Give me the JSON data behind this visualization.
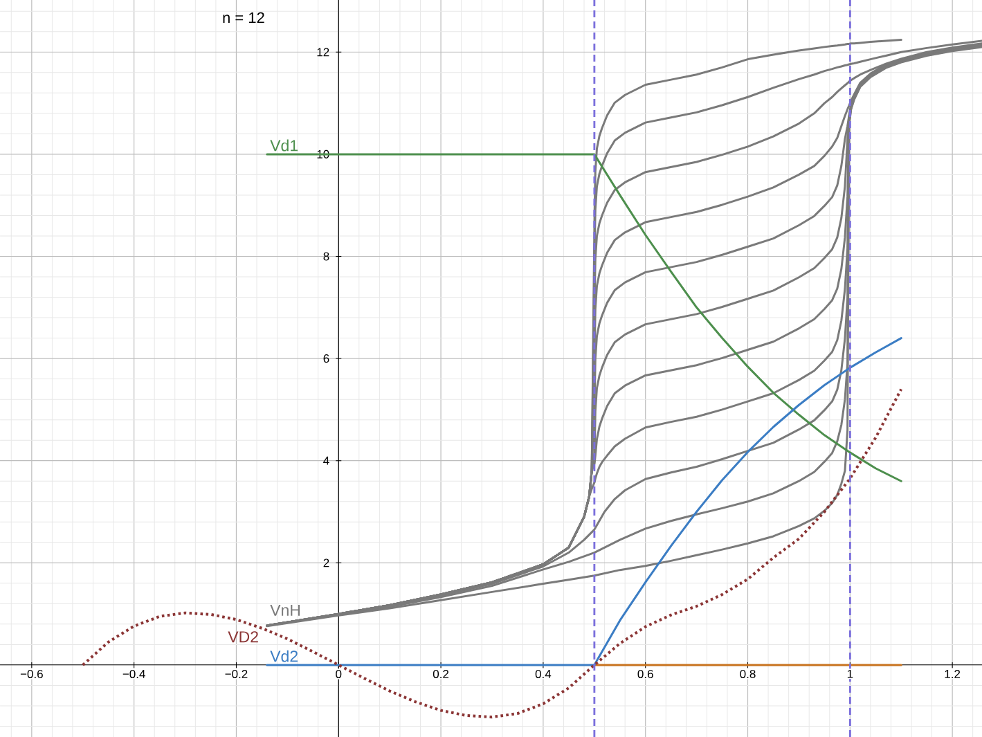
{
  "chart_data": {
    "type": "line",
    "annotations": [
      "n = 12"
    ],
    "xlim": [
      -0.662,
      1.258
    ],
    "ylim": [
      -1.41,
      13.02
    ],
    "xticks": [
      {
        "value": -0.6,
        "label": "−0.6"
      },
      {
        "value": -0.4,
        "label": "−0.4"
      },
      {
        "value": -0.2,
        "label": "−0.2"
      },
      0,
      0.2,
      0.4,
      0.6,
      0.8,
      1,
      1.2
    ],
    "yticks": [
      2,
      4,
      6,
      8,
      10,
      12
    ],
    "grid": true,
    "ref_lines": [
      {
        "axis": "x",
        "value": 0.5,
        "color": "#7b6fdc",
        "line_style": "dashed"
      },
      {
        "axis": "x",
        "value": 1.0,
        "color": "#7b6fdc",
        "line_style": "dashed"
      }
    ],
    "series": [
      {
        "name": "VnH",
        "color": "#7a7a7a",
        "x": [
          -0.14,
          0,
          0.1,
          0.2,
          0.3,
          0.4,
          0.45,
          0.48,
          0.49,
          0.495,
          0.5005,
          0.502,
          0.505,
          0.51,
          0.515,
          0.525,
          0.54,
          0.56,
          0.6,
          0.65,
          0.7,
          0.75,
          0.8,
          0.85,
          0.9,
          0.93,
          0.95,
          0.965,
          0.975,
          0.983,
          0.99,
          0.995,
          0.998,
          1.002,
          1.008,
          1.02,
          1.04,
          1.07,
          1.1
        ],
        "values": [
          0.77,
          1.0,
          1.17,
          1.38,
          1.62,
          1.97,
          2.3,
          2.9,
          3.3,
          3.8,
          8.86,
          9.66,
          10.11,
          10.36,
          10.51,
          10.76,
          11.01,
          11.16,
          11.36,
          11.46,
          11.56,
          11.7,
          11.86,
          11.95,
          12.03,
          12.07,
          12.1,
          12.12,
          12.13,
          12.14,
          12.15,
          12.16,
          12.16,
          12.17,
          12.17,
          12.18,
          12.2,
          12.22,
          12.24
        ]
      },
      {
        "color": "#7a7a7a",
        "x": [
          -0.14,
          0,
          0.1,
          0.2,
          0.3,
          0.4,
          0.45,
          0.48,
          0.49,
          0.495,
          0.5005,
          0.502,
          0.505,
          0.51,
          0.515,
          0.525,
          0.54,
          0.56,
          0.6,
          0.65,
          0.7,
          0.75,
          0.8,
          0.85,
          0.9,
          0.93,
          0.95,
          0.965,
          0.975,
          0.983,
          0.99,
          0.995,
          0.998,
          1.002,
          1.008,
          1.02,
          1.04,
          1.07,
          1.1,
          1.15,
          1.2,
          1.258
        ],
        "values": [
          0.77,
          1.0,
          1.17,
          1.38,
          1.62,
          1.97,
          2.3,
          2.9,
          3.3,
          3.8,
          8.12,
          8.92,
          9.37,
          9.62,
          9.77,
          10.02,
          10.27,
          10.42,
          10.62,
          10.72,
          10.82,
          10.96,
          11.12,
          11.3,
          11.47,
          11.56,
          11.63,
          11.67,
          11.7,
          11.72,
          11.74,
          11.75,
          11.76,
          11.77,
          11.78,
          11.81,
          11.86,
          11.93,
          12.0,
          12.08,
          12.15,
          12.22
        ]
      },
      {
        "color": "#7a7a7a",
        "x": [
          -0.14,
          0,
          0.1,
          0.2,
          0.3,
          0.4,
          0.45,
          0.48,
          0.49,
          0.495,
          0.5005,
          0.502,
          0.505,
          0.51,
          0.515,
          0.525,
          0.54,
          0.56,
          0.6,
          0.65,
          0.7,
          0.75,
          0.8,
          0.85,
          0.9,
          0.93,
          0.95,
          0.965,
          0.975,
          0.983,
          0.99,
          0.995,
          0.998,
          1.002,
          1.008,
          1.02,
          1.04,
          1.07,
          1.1,
          1.15,
          1.2,
          1.258
        ],
        "values": [
          0.77,
          1.0,
          1.17,
          1.38,
          1.62,
          1.97,
          2.3,
          2.9,
          3.3,
          3.8,
          7.15,
          7.95,
          8.4,
          8.65,
          8.8,
          9.05,
          9.3,
          9.45,
          9.65,
          9.75,
          9.85,
          9.99,
          10.15,
          10.35,
          10.6,
          10.8,
          11.0,
          11.12,
          11.22,
          11.29,
          11.35,
          11.39,
          11.42,
          11.45,
          11.49,
          11.56,
          11.65,
          11.77,
          11.87,
          12.0,
          12.09,
          12.17
        ]
      },
      {
        "color": "#7a7a7a",
        "x": [
          -0.14,
          0,
          0.1,
          0.2,
          0.3,
          0.4,
          0.45,
          0.48,
          0.49,
          0.495,
          0.5005,
          0.502,
          0.505,
          0.51,
          0.515,
          0.525,
          0.54,
          0.56,
          0.6,
          0.65,
          0.7,
          0.75,
          0.8,
          0.85,
          0.9,
          0.93,
          0.95,
          0.965,
          0.975,
          0.983,
          0.99,
          0.995,
          0.998,
          1.002,
          1.008,
          1.02,
          1.04,
          1.07,
          1.1,
          1.15,
          1.2,
          1.258
        ],
        "values": [
          0.77,
          1.0,
          1.17,
          1.38,
          1.62,
          1.97,
          2.3,
          2.9,
          3.3,
          3.8,
          6.17,
          6.97,
          7.42,
          7.67,
          7.82,
          8.07,
          8.32,
          8.47,
          8.67,
          8.77,
          8.87,
          9.01,
          9.17,
          9.35,
          9.6,
          9.77,
          9.97,
          10.15,
          10.32,
          10.55,
          10.75,
          10.88,
          10.95,
          11.05,
          11.17,
          11.4,
          11.58,
          11.76,
          11.86,
          11.99,
          12.08,
          12.16
        ]
      },
      {
        "color": "#7a7a7a",
        "x": [
          -0.14,
          0,
          0.1,
          0.2,
          0.3,
          0.4,
          0.45,
          0.48,
          0.49,
          0.495,
          0.5005,
          0.502,
          0.505,
          0.51,
          0.515,
          0.525,
          0.54,
          0.56,
          0.6,
          0.65,
          0.7,
          0.75,
          0.8,
          0.85,
          0.9,
          0.93,
          0.95,
          0.965,
          0.975,
          0.983,
          0.99,
          0.995,
          0.998,
          1.002,
          1.008,
          1.02,
          1.04,
          1.07,
          1.1,
          1.15,
          1.2,
          1.258
        ],
        "values": [
          0.77,
          1.0,
          1.17,
          1.38,
          1.62,
          1.97,
          2.3,
          2.9,
          3.3,
          3.8,
          5.19,
          5.99,
          6.44,
          6.69,
          6.84,
          7.09,
          7.34,
          7.49,
          7.69,
          7.79,
          7.89,
          8.03,
          8.19,
          8.35,
          8.61,
          8.79,
          8.99,
          9.16,
          9.39,
          9.77,
          10.3,
          10.55,
          10.75,
          10.97,
          11.14,
          11.38,
          11.57,
          11.75,
          11.85,
          11.98,
          12.07,
          12.15
        ]
      },
      {
        "color": "#7a7a7a",
        "x": [
          -0.14,
          0,
          0.1,
          0.2,
          0.3,
          0.4,
          0.45,
          0.48,
          0.49,
          0.495,
          0.5005,
          0.502,
          0.505,
          0.51,
          0.515,
          0.525,
          0.54,
          0.56,
          0.6,
          0.65,
          0.7,
          0.75,
          0.8,
          0.85,
          0.9,
          0.93,
          0.95,
          0.965,
          0.975,
          0.983,
          0.99,
          0.995,
          0.998,
          1.002,
          1.008,
          1.02,
          1.04,
          1.07,
          1.1,
          1.15,
          1.2,
          1.258
        ],
        "values": [
          0.77,
          1.0,
          1.17,
          1.38,
          1.62,
          1.97,
          2.3,
          2.9,
          3.3,
          3.8,
          4.17,
          4.97,
          5.42,
          5.67,
          5.82,
          6.07,
          6.32,
          6.47,
          6.67,
          6.77,
          6.87,
          7.01,
          7.17,
          7.33,
          7.59,
          7.77,
          7.97,
          8.14,
          8.37,
          8.75,
          9.37,
          10.3,
          10.72,
          10.96,
          11.13,
          11.37,
          11.56,
          11.74,
          11.84,
          11.97,
          12.06,
          12.14
        ]
      },
      {
        "color": "#7a7a7a",
        "x": [
          -0.14,
          0,
          0.1,
          0.2,
          0.3,
          0.4,
          0.45,
          0.48,
          0.49,
          0.495,
          0.5005,
          0.502,
          0.505,
          0.51,
          0.515,
          0.525,
          0.54,
          0.56,
          0.6,
          0.65,
          0.7,
          0.75,
          0.8,
          0.85,
          0.9,
          0.93,
          0.95,
          0.965,
          0.975,
          0.983,
          0.99,
          0.995,
          0.998,
          1.002,
          1.008,
          1.02,
          1.04,
          1.07,
          1.1,
          1.15,
          1.2,
          1.258
        ],
        "values": [
          0.77,
          1.0,
          1.17,
          1.38,
          1.62,
          1.97,
          2.3,
          2.9,
          3.3,
          3.8,
          3.95,
          4.1,
          4.42,
          4.67,
          4.82,
          5.07,
          5.32,
          5.47,
          5.67,
          5.77,
          5.87,
          6.01,
          6.17,
          6.33,
          6.59,
          6.77,
          6.97,
          7.14,
          7.37,
          7.75,
          8.37,
          9.17,
          10.69,
          10.95,
          11.12,
          11.36,
          11.55,
          11.73,
          11.84,
          11.97,
          12.06,
          12.14
        ]
      },
      {
        "color": "#7a7a7a",
        "x": [
          -0.14,
          0,
          0.1,
          0.2,
          0.3,
          0.4,
          0.45,
          0.48,
          0.49,
          0.495,
          0.5005,
          0.502,
          0.505,
          0.51,
          0.515,
          0.525,
          0.54,
          0.56,
          0.6,
          0.65,
          0.7,
          0.75,
          0.8,
          0.85,
          0.9,
          0.93,
          0.95,
          0.965,
          0.975,
          0.983,
          0.99,
          0.995,
          0.998,
          1.002,
          1.008,
          1.02,
          1.04,
          1.07,
          1.1,
          1.15,
          1.2,
          1.258
        ],
        "values": [
          0.77,
          1.0,
          1.17,
          1.38,
          1.62,
          1.97,
          2.3,
          2.9,
          3.3,
          3.45,
          3.58,
          3.65,
          3.75,
          3.88,
          3.97,
          4.1,
          4.28,
          4.43,
          4.65,
          4.76,
          4.86,
          5.0,
          5.16,
          5.32,
          5.58,
          5.76,
          5.96,
          6.13,
          6.36,
          6.74,
          7.36,
          8.16,
          10.66,
          10.94,
          11.11,
          11.35,
          11.54,
          11.72,
          11.83,
          11.96,
          12.05,
          12.13
        ]
      },
      {
        "color": "#7a7a7a",
        "x": [
          -0.14,
          0,
          0.1,
          0.2,
          0.3,
          0.4,
          0.45,
          0.48,
          0.5,
          0.52,
          0.54,
          0.56,
          0.6,
          0.65,
          0.7,
          0.75,
          0.8,
          0.85,
          0.9,
          0.93,
          0.95,
          0.965,
          0.975,
          0.983,
          0.99,
          0.995,
          0.998,
          1.002,
          1.008,
          1.02,
          1.04,
          1.07,
          1.1,
          1.15,
          1.2,
          1.258
        ],
        "values": [
          0.77,
          0.99,
          1.16,
          1.36,
          1.59,
          1.93,
          2.2,
          2.45,
          2.65,
          3.0,
          3.25,
          3.42,
          3.64,
          3.77,
          3.88,
          4.03,
          4.19,
          4.35,
          4.61,
          4.79,
          4.99,
          5.16,
          5.39,
          5.77,
          6.39,
          7.19,
          10.62,
          10.92,
          11.09,
          11.34,
          11.53,
          11.71,
          11.82,
          11.95,
          12.04,
          12.12
        ]
      },
      {
        "color": "#7a7a7a",
        "x": [
          -0.14,
          0,
          0.1,
          0.2,
          0.3,
          0.4,
          0.45,
          0.5,
          0.55,
          0.6,
          0.65,
          0.7,
          0.75,
          0.8,
          0.85,
          0.9,
          0.93,
          0.95,
          0.965,
          0.975,
          0.983,
          0.99,
          0.995,
          0.998,
          1.002,
          1.008,
          1.02,
          1.04,
          1.07,
          1.1,
          1.15,
          1.2,
          1.258
        ],
        "values": [
          0.77,
          0.98,
          1.14,
          1.33,
          1.55,
          1.87,
          2.02,
          2.2,
          2.45,
          2.67,
          2.82,
          2.95,
          3.07,
          3.2,
          3.36,
          3.6,
          3.78,
          3.98,
          4.15,
          4.38,
          4.7,
          5.2,
          5.9,
          10.6,
          10.9,
          11.08,
          11.33,
          11.52,
          11.7,
          11.81,
          11.94,
          12.03,
          12.11
        ]
      },
      {
        "color": "#7a7a7a",
        "x": [
          -0.14,
          0,
          0.1,
          0.2,
          0.3,
          0.4,
          0.45,
          0.5,
          0.55,
          0.6,
          0.65,
          0.7,
          0.75,
          0.8,
          0.85,
          0.9,
          0.93,
          0.95,
          0.965,
          0.975,
          0.983,
          0.99,
          0.995,
          0.998,
          1.002,
          1.008,
          1.02,
          1.04,
          1.07,
          1.1,
          1.15,
          1.2,
          1.258
        ],
        "values": [
          0.76,
          0.97,
          1.11,
          1.27,
          1.43,
          1.59,
          1.67,
          1.75,
          1.86,
          1.94,
          2.04,
          2.15,
          2.26,
          2.38,
          2.52,
          2.72,
          2.87,
          3.02,
          3.17,
          3.33,
          3.55,
          3.8,
          4.6,
          10.55,
          10.88,
          11.07,
          11.32,
          11.51,
          11.69,
          11.8,
          11.93,
          12.02,
          12.1
        ]
      },
      {
        "name": "Vd1",
        "color": "#4d8f4d",
        "x": [
          -0.14,
          0.5,
          0.55,
          0.6,
          0.65,
          0.7,
          0.75,
          0.8,
          0.85,
          0.9,
          0.95,
          1.0,
          1.05,
          1.1
        ],
        "values": [
          10,
          10,
          9.2,
          8.42,
          7.7,
          7.0,
          6.4,
          5.84,
          5.33,
          4.9,
          4.5,
          4.16,
          3.85,
          3.6
        ]
      },
      {
        "color": "#c8731e",
        "x": [
          0.5,
          1.1
        ],
        "values": [
          0,
          0
        ]
      },
      {
        "name": "Vd2",
        "color": "#3b7dc4",
        "x": [
          -0.14,
          0.5,
          0.55,
          0.6,
          0.65,
          0.7,
          0.75,
          0.8,
          0.85,
          0.9,
          0.95,
          1.0,
          1.05,
          1.1
        ],
        "values": [
          0,
          0,
          0.87,
          1.62,
          2.33,
          3.0,
          3.62,
          4.17,
          4.66,
          5.09,
          5.48,
          5.82,
          6.12,
          6.4
        ]
      },
      {
        "name": "VD2",
        "color": "#8b3535",
        "line_style": "dotted",
        "x": [
          -0.5,
          -0.45,
          -0.4,
          -0.35,
          -0.3,
          -0.25,
          -0.2,
          -0.15,
          -0.1,
          -0.05,
          0,
          0.05,
          0.1,
          0.15,
          0.2,
          0.25,
          0.3,
          0.35,
          0.4,
          0.45,
          0.5,
          0.55,
          0.6,
          0.65,
          0.7,
          0.75,
          0.8,
          0.85,
          0.9,
          0.95,
          1.0,
          1.05,
          1.1
        ],
        "values": [
          0,
          0.45,
          0.76,
          0.95,
          1.02,
          0.99,
          0.89,
          0.72,
          0.51,
          0.26,
          0,
          -0.26,
          -0.51,
          -0.72,
          -0.89,
          -0.99,
          -1.02,
          -0.95,
          -0.76,
          -0.45,
          0,
          0.42,
          0.75,
          0.98,
          1.15,
          1.38,
          1.68,
          2.1,
          2.47,
          3.0,
          3.65,
          4.45,
          5.4
        ]
      }
    ]
  }
}
